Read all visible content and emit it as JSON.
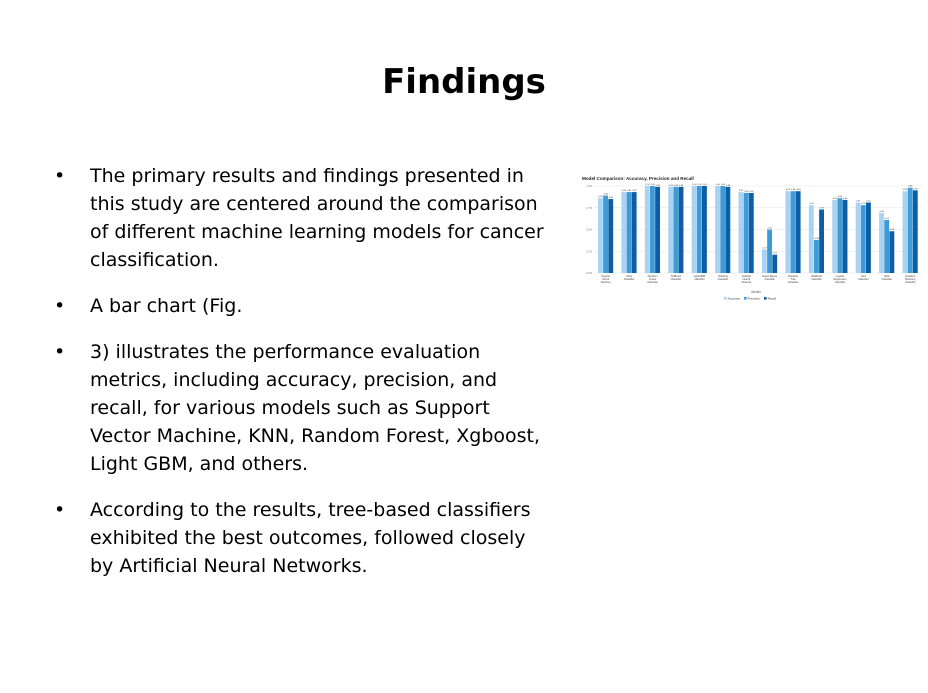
{
  "slide": {
    "title": "Findings",
    "bullet_symbol": "•",
    "bullets": [
      "The primary results and findings presented in this study are centered around the comparison of different machine learning models for cancer classification.",
      "A bar chart (Fig.",
      "3) illustrates the performance evaluation metrics, including accuracy, precision, and recall, for various models such as Support Vector Machine, KNN, Random Forest, Xgboost, Light GBM, and others.",
      "According to the results, tree-based classifiers exhibited the best outcomes, followed closely by Artificial Neural Networks."
    ]
  },
  "colors": {
    "text": "#000000",
    "accuracy": "#a9d3f0",
    "precision": "#3f9ad8",
    "recall": "#0b5fa6",
    "grid": "#e3e3e3"
  },
  "chart_data": {
    "type": "bar",
    "title": "Model Comparison: Accuracy, Precision and Recall",
    "xlabel": "Model",
    "ylabel": "",
    "ylim": [
      0,
      1.0
    ],
    "yticks": [
      "0.00",
      "0.25",
      "0.50",
      "0.75",
      "1.00"
    ],
    "grid": true,
    "legend_position": "bottom",
    "categories": [
      "Support Vector Machine",
      "KNN Classifier",
      "Random Forest Classifier",
      "XGBoost Classifier",
      "LightGBM Classifier",
      "Stacking Classifier",
      "Artificial Neural Network",
      "Naive Bayes Classifier",
      "Decision Tree Classifier",
      "AdaBoost Classifier",
      "Logistic Regression Classifier",
      "LDA Classifier",
      "QDA Classifier",
      "Gradient Boosting Classifier"
    ],
    "series": [
      {
        "name": "Accuracy",
        "values": [
          0.86,
          0.93,
          1.0,
          0.99,
          1.0,
          1.0,
          0.93,
          0.27,
          0.94,
          0.78,
          0.84,
          0.81,
          0.69,
          0.94
        ]
      },
      {
        "name": "Precision",
        "values": [
          0.89,
          0.93,
          1.0,
          0.99,
          1.0,
          1.0,
          0.92,
          0.5,
          0.94,
          0.38,
          0.86,
          0.78,
          0.61,
          0.98
        ]
      },
      {
        "name": "Recall",
        "values": [
          0.85,
          0.93,
          0.99,
          0.99,
          1.0,
          0.99,
          0.92,
          0.21,
          0.94,
          0.73,
          0.84,
          0.81,
          0.48,
          0.95
        ]
      }
    ]
  }
}
